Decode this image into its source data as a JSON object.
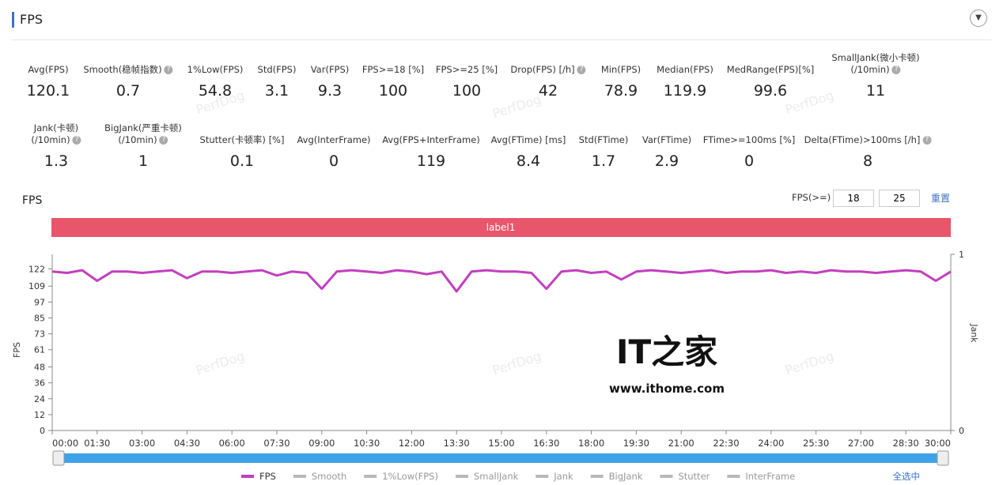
{
  "header": {
    "title": "FPS"
  },
  "stats_rows": [
    [
      {
        "label": "Avg(FPS)",
        "value": 120.1
      },
      {
        "label": "Smooth(稳帧指数)",
        "value": 0.7,
        "help": true
      },
      {
        "label": "1%Low(FPS)",
        "value": 54.8
      },
      {
        "label": "Std(FPS)",
        "value": 3.1
      },
      {
        "label": "Var(FPS)",
        "value": 9.3
      },
      {
        "label": "FPS>=18 [%]",
        "value": 100
      },
      {
        "label": "FPS>=25 [%]",
        "value": 100
      },
      {
        "label": "Drop(FPS) [/h]",
        "value": 42,
        "help": true
      },
      {
        "label": "Min(FPS)",
        "value": 78.9
      },
      {
        "label": "Median(FPS)",
        "value": 119.9
      },
      {
        "label": "MedRange(FPS)[%]",
        "value": 99.6
      },
      {
        "label": [
          "SmallJank(微小卡顿)",
          "(/10min)"
        ],
        "value": 11,
        "help": true
      }
    ],
    [
      {
        "label": [
          "Jank(卡顿)",
          "(/10min)"
        ],
        "value": 1.3,
        "help": true
      },
      {
        "label": [
          "BigJank(严重卡顿)",
          "(/10min)"
        ],
        "value": 1,
        "help": true
      },
      {
        "label": "Stutter(卡顿率) [%]",
        "value": 0.1
      },
      {
        "label": "Avg(InterFrame)",
        "value": 0
      },
      {
        "label": "Avg(FPS+InterFrame)",
        "value": 119
      },
      {
        "label": "Avg(FTime) [ms]",
        "value": 8.4
      },
      {
        "label": "Std(FTime)",
        "value": 1.7
      },
      {
        "label": "Var(FTime)",
        "value": 2.9
      },
      {
        "label": "FTime>=100ms [%]",
        "value": 0
      },
      {
        "label": "Delta(FTime)>100ms [/h]",
        "value": 8,
        "help": true
      }
    ]
  ],
  "controls": {
    "threshold_label": "FPS(>=)",
    "thresholds": [
      18,
      25
    ],
    "reset": "重置",
    "select_all": "全选中"
  },
  "watermark": "PerfDog",
  "site_logo": "IT之家",
  "site_url": "www.ithome.com",
  "chart_data": {
    "type": "line",
    "title": "FPS",
    "band_label": "label1",
    "y_label": "FPS",
    "y2_label": "Jank",
    "x": [
      0,
      0.5,
      1,
      1.5,
      2,
      2.5,
      3,
      3.5,
      4,
      4.5,
      5,
      5.5,
      6,
      6.5,
      7,
      7.5,
      8,
      8.5,
      9,
      9.5,
      10,
      10.5,
      11,
      11.5,
      12,
      12.5,
      13,
      13.5,
      14,
      14.5,
      15,
      15.5,
      16,
      16.5,
      17,
      17.5,
      18,
      18.5,
      19,
      19.5,
      20,
      20.5,
      21,
      21.5,
      22,
      22.5,
      23,
      23.5,
      24,
      24.5,
      25,
      25.5,
      26,
      26.5,
      27,
      27.5,
      28,
      28.5,
      29,
      29.5,
      30
    ],
    "series": [
      {
        "name": "FPS",
        "color": "#c23fbf",
        "values": [
          120,
          119,
          121,
          113,
          120,
          120,
          119,
          120,
          121,
          115,
          120,
          120,
          119,
          120,
          121,
          117,
          120,
          119,
          107,
          120,
          121,
          120,
          119,
          121,
          120,
          118,
          120,
          105,
          120,
          121,
          120,
          120,
          119,
          107,
          120,
          121,
          119,
          120,
          114,
          120,
          121,
          120,
          119,
          120,
          121,
          119,
          120,
          120,
          121,
          119,
          120,
          119,
          121,
          120,
          120,
          119,
          120,
          121,
          120,
          113,
          120
        ]
      }
    ],
    "legend_items": [
      "Smooth",
      "1%Low(FPS)",
      "SmallJank",
      "Jank",
      "BigJank",
      "Stutter",
      "InterFrame"
    ],
    "legend_inactive_color": "#b8b8b8",
    "xlim": [
      0,
      30
    ],
    "xticks": [
      {
        "value": 0,
        "label": "00:00"
      },
      {
        "value": 1.5,
        "label": "01:30"
      },
      {
        "value": 3,
        "label": "03:00"
      },
      {
        "value": 4.5,
        "label": "04:30"
      },
      {
        "value": 6,
        "label": "06:00"
      },
      {
        "value": 7.5,
        "label": "07:30"
      },
      {
        "value": 9,
        "label": "09:00"
      },
      {
        "value": 10.5,
        "label": "10:30"
      },
      {
        "value": 12,
        "label": "12:00"
      },
      {
        "value": 13.5,
        "label": "13:30"
      },
      {
        "value": 15,
        "label": "15:00"
      },
      {
        "value": 16.5,
        "label": "16:30"
      },
      {
        "value": 18,
        "label": "18:00"
      },
      {
        "value": 19.5,
        "label": "19:30"
      },
      {
        "value": 21,
        "label": "21:00"
      },
      {
        "value": 22.5,
        "label": "22:30"
      },
      {
        "value": 24,
        "label": "24:00"
      },
      {
        "value": 25.5,
        "label": "25:30"
      },
      {
        "value": 27,
        "label": "27:00"
      },
      {
        "value": 28.5,
        "label": "28:30"
      },
      {
        "value": 30,
        "label": "30:00"
      }
    ],
    "ylim": [
      0,
      133
    ],
    "yticks": [
      0,
      12,
      24,
      36,
      48,
      61,
      73,
      85,
      97,
      109,
      122
    ],
    "y2lim": [
      0,
      1
    ],
    "y2ticks": [
      0,
      1
    ]
  }
}
